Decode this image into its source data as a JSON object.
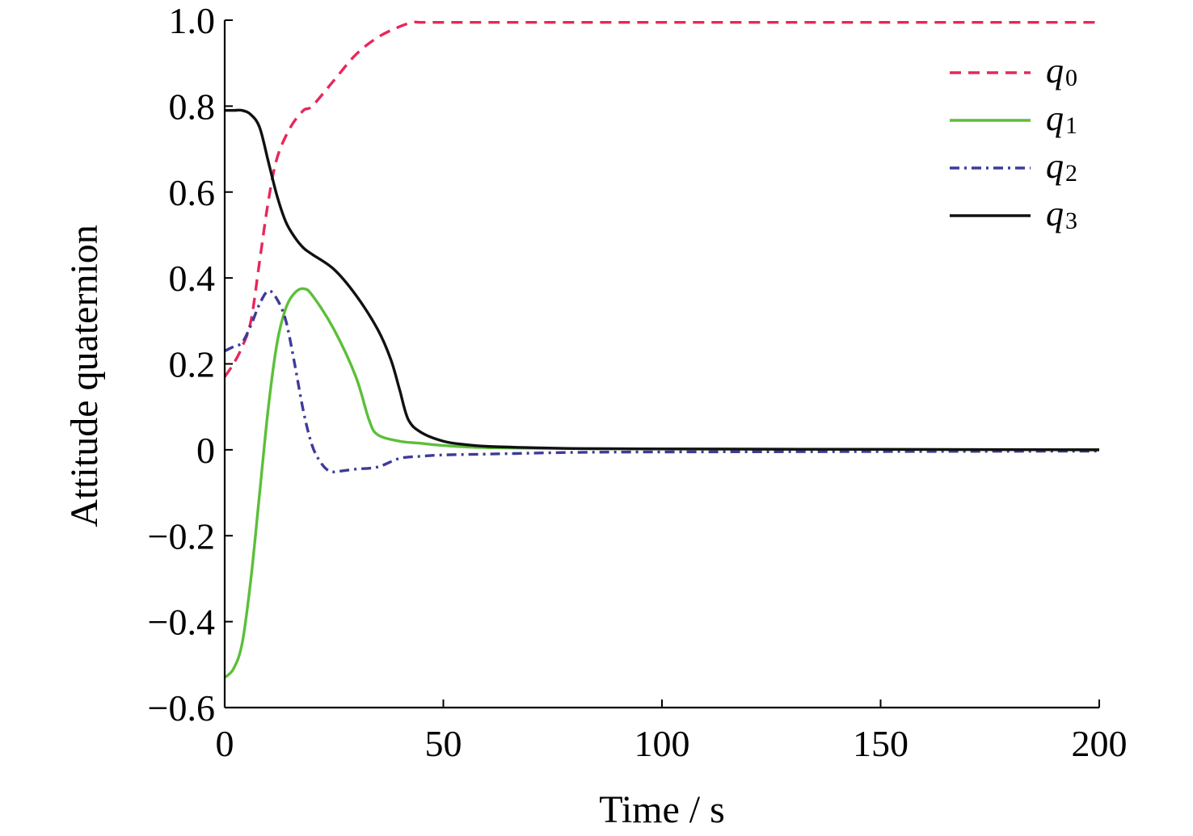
{
  "chart_data": {
    "type": "line",
    "title": "",
    "xlabel": "Time / s",
    "ylabel": "Attitude quaternion",
    "xlim": [
      0,
      200
    ],
    "ylim": [
      -0.6,
      1.0
    ],
    "xticks": [
      0,
      50,
      100,
      150,
      200
    ],
    "xtick_labels": [
      "0",
      "50",
      "100",
      "150",
      "200"
    ],
    "yticks": [
      -0.6,
      -0.4,
      -0.2,
      0,
      0.2,
      0.4,
      0.6,
      0.8,
      1.0
    ],
    "ytick_labels": [
      "−0.6",
      "−0.4",
      "−0.2",
      "0",
      "0.2",
      "0.4",
      "0.6",
      "0.8",
      "1.0"
    ],
    "grid": false,
    "legend": {
      "position": "top-right"
    },
    "series": [
      {
        "name": "q0",
        "label_base": "q",
        "label_sub": "0",
        "color": "#e8275a",
        "dash": "dashed",
        "x": [
          0,
          2,
          4,
          6,
          8,
          10,
          12,
          15,
          18,
          20,
          25,
          30,
          35,
          40,
          43,
          45,
          50,
          60,
          80,
          100,
          150,
          200
        ],
        "y": [
          0.17,
          0.2,
          0.24,
          0.3,
          0.44,
          0.58,
          0.68,
          0.75,
          0.79,
          0.8,
          0.86,
          0.92,
          0.96,
          0.985,
          0.995,
          0.995,
          0.995,
          0.995,
          0.995,
          0.995,
          0.995,
          0.995
        ]
      },
      {
        "name": "q1",
        "label_base": "q",
        "label_sub": "1",
        "color": "#5cbf3a",
        "dash": "solid",
        "x": [
          0,
          2,
          4,
          6,
          8,
          10,
          12,
          14,
          16,
          18,
          20,
          25,
          30,
          33,
          35,
          40,
          45,
          50,
          60,
          80,
          100,
          150,
          200
        ],
        "y": [
          -0.53,
          -0.51,
          -0.45,
          -0.3,
          -0.1,
          0.1,
          0.25,
          0.33,
          0.365,
          0.375,
          0.36,
          0.28,
          0.17,
          0.07,
          0.035,
          0.02,
          0.015,
          0.01,
          0.005,
          0.003,
          0.002,
          0.001,
          0.0
        ]
      },
      {
        "name": "q2",
        "label_base": "q",
        "label_sub": "2",
        "color": "#3e3a9a",
        "dash": "dashdot",
        "x": [
          0,
          2,
          4,
          6,
          8,
          10,
          12,
          14,
          16,
          18,
          20,
          22,
          24,
          26,
          30,
          35,
          40,
          45,
          50,
          60,
          80,
          100,
          150,
          200
        ],
        "y": [
          0.23,
          0.24,
          0.25,
          0.29,
          0.34,
          0.37,
          0.35,
          0.3,
          0.2,
          0.09,
          0.01,
          -0.03,
          -0.05,
          -0.05,
          -0.045,
          -0.04,
          -0.02,
          -0.015,
          -0.012,
          -0.01,
          -0.006,
          -0.005,
          -0.004,
          -0.003
        ]
      },
      {
        "name": "q3",
        "label_base": "q",
        "label_sub": "3",
        "color": "#111111",
        "dash": "solid",
        "x": [
          0,
          2,
          4,
          6,
          8,
          10,
          12,
          14,
          16,
          18,
          20,
          25,
          30,
          35,
          38,
          40,
          42,
          45,
          50,
          55,
          60,
          70,
          80,
          100,
          150,
          200
        ],
        "y": [
          0.79,
          0.79,
          0.79,
          0.78,
          0.75,
          0.67,
          0.59,
          0.53,
          0.495,
          0.47,
          0.455,
          0.42,
          0.36,
          0.28,
          0.21,
          0.14,
          0.07,
          0.04,
          0.02,
          0.012,
          0.008,
          0.005,
          0.003,
          0.002,
          0.001,
          0.0
        ]
      }
    ]
  }
}
